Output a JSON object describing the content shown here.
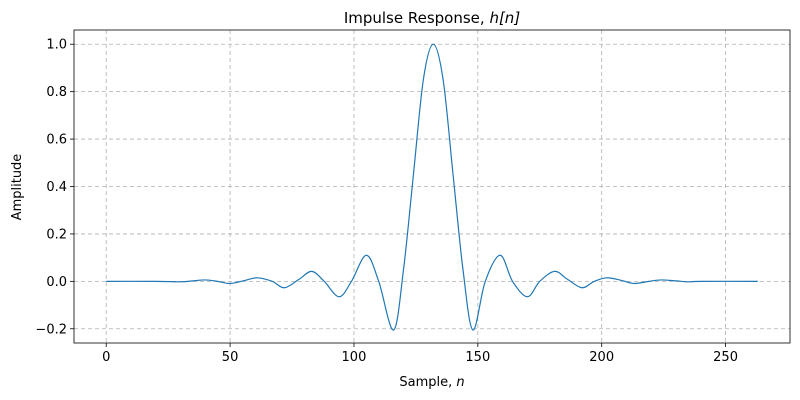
{
  "chart_data": {
    "type": "line",
    "title": "Impulse Response, h[n]",
    "title_parts": {
      "prefix": "Impulse Response, ",
      "math": "h[n]"
    },
    "xlabel": "Sample, n",
    "xlabel_parts": {
      "prefix": "Sample, ",
      "math": "n"
    },
    "ylabel": "Amplitude",
    "xlim": [
      -13,
      276
    ],
    "ylim": [
      -0.26,
      1.06
    ],
    "xticks": [
      0,
      50,
      100,
      150,
      200,
      250
    ],
    "xtick_labels": [
      "0",
      "50",
      "100",
      "150",
      "200",
      "250"
    ],
    "yticks": [
      -0.2,
      0.0,
      0.2,
      0.4,
      0.6,
      0.8,
      1.0
    ],
    "ytick_labels": [
      "−0.2",
      "0.0",
      "0.2",
      "0.4",
      "0.6",
      "0.8",
      "1.0"
    ],
    "grid": true,
    "line_color": "#1f77b4",
    "series": [
      {
        "x": [
          0,
          20,
          30,
          35,
          40,
          45,
          50,
          56,
          61,
          67,
          72,
          78,
          83,
          88,
          94,
          99,
          105,
          110,
          116,
          120,
          124,
          128,
          132,
          136,
          140,
          144,
          148,
          153,
          159,
          164,
          170,
          175,
          181,
          186,
          192,
          197,
          202,
          208,
          213,
          219,
          224,
          230,
          235,
          240,
          263
        ],
        "y": [
          0.0,
          0.0,
          -0.002,
          0.002,
          0.006,
          0.0,
          -0.009,
          0.004,
          0.015,
          0.0,
          -0.027,
          0.01,
          0.042,
          0.0,
          -0.065,
          0.0,
          0.11,
          0.0,
          -0.205,
          0.05,
          0.45,
          0.85,
          1.0,
          0.85,
          0.45,
          0.05,
          -0.205,
          0.0,
          0.11,
          0.0,
          -0.065,
          0.0,
          0.042,
          0.01,
          -0.027,
          0.0,
          0.015,
          0.004,
          -0.009,
          0.0,
          0.006,
          0.002,
          -0.002,
          0.0,
          0.0
        ]
      }
    ]
  }
}
